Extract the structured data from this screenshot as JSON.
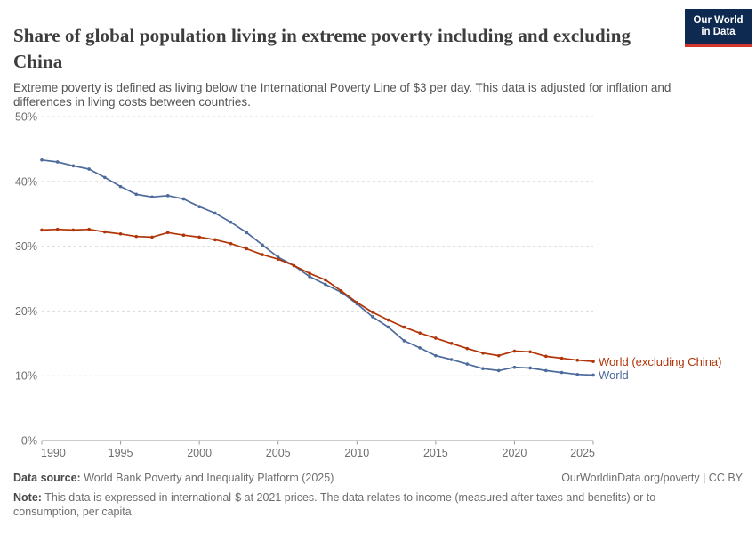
{
  "header": {
    "title": "Share of global population living in extreme poverty including and excluding China",
    "subtitle": "Extreme poverty is defined as living below the International Poverty Line of $3 per day. This data is adjusted for inflation and differences in living costs between countries.",
    "logo": {
      "line1": "Our World",
      "line2": "in Data"
    }
  },
  "chart_data": {
    "type": "line",
    "title": "Share of global population living in extreme poverty including and excluding China",
    "x": [
      1990,
      1991,
      1992,
      1993,
      1994,
      1995,
      1996,
      1997,
      1998,
      1999,
      2000,
      2001,
      2002,
      2003,
      2004,
      2005,
      2006,
      2007,
      2008,
      2009,
      2010,
      2011,
      2012,
      2013,
      2014,
      2015,
      2016,
      2017,
      2018,
      2019,
      2020,
      2021,
      2022,
      2023,
      2024,
      2025
    ],
    "series": [
      {
        "name": "World",
        "color": "#4C6A9C",
        "values": [
          43.3,
          43.0,
          42.4,
          41.9,
          40.6,
          39.2,
          38.0,
          37.6,
          37.8,
          37.3,
          36.1,
          35.1,
          33.7,
          32.1,
          30.2,
          28.3,
          27.0,
          25.3,
          24.1,
          22.9,
          21.1,
          19.1,
          17.5,
          15.4,
          14.3,
          13.1,
          12.5,
          11.8,
          11.1,
          10.8,
          11.3,
          11.2,
          10.8,
          10.5,
          10.2,
          10.1
        ]
      },
      {
        "name": "World (excluding China)",
        "color": "#B13507",
        "values": [
          32.5,
          32.6,
          32.5,
          32.6,
          32.2,
          31.9,
          31.5,
          31.4,
          32.1,
          31.7,
          31.4,
          31.0,
          30.4,
          29.6,
          28.7,
          28.0,
          27.0,
          25.8,
          24.8,
          23.1,
          21.3,
          19.8,
          18.6,
          17.5,
          16.6,
          15.8,
          15.0,
          14.2,
          13.5,
          13.1,
          13.8,
          13.7,
          13.0,
          12.7,
          12.4,
          12.2
        ]
      }
    ],
    "ylim": [
      0,
      50
    ],
    "y_ticks": [
      0,
      10,
      20,
      30,
      40,
      50
    ],
    "y_tick_labels": [
      "0%",
      "10%",
      "20%",
      "30%",
      "40%",
      "50%"
    ],
    "x_ticks": [
      1990,
      1995,
      2000,
      2005,
      2010,
      2015,
      2020,
      2025
    ],
    "x_tick_labels": [
      "1990",
      "1995",
      "2000",
      "2005",
      "2010",
      "2015",
      "2020",
      "2025"
    ],
    "grid": "horizontal-dashed",
    "legend_position": "right-end-labels",
    "colors": {
      "grid": "#dadada",
      "axis": "#9a9a9a",
      "tick_text": "#6e6e6e"
    }
  },
  "footer": {
    "datasource_label": "Data source:",
    "datasource_text": "World Bank Poverty and Inequality Platform (2025)",
    "rights": "OurWorldinData.org/poverty | CC BY",
    "note_label": "Note:",
    "note_text": "This data is expressed in international-$ at 2021 prices. The data relates to income (measured after taxes and benefits) or to consumption, per capita."
  }
}
